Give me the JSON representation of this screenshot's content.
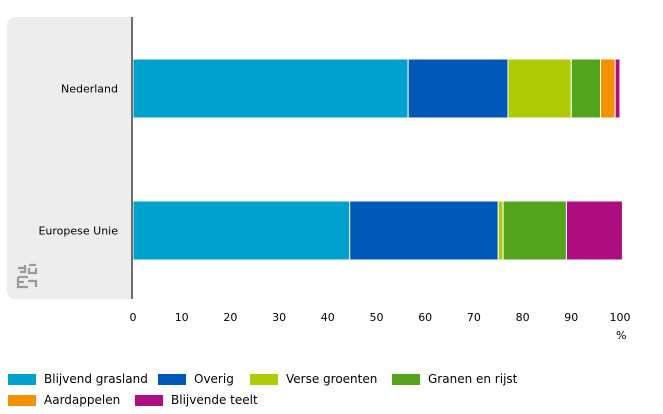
{
  "chart_data": {
    "type": "bar",
    "orientation": "horizontal",
    "stacked": true,
    "categories": [
      "Nederland",
      "Europese Unie"
    ],
    "series": [
      {
        "name": "Blijvend grasland",
        "color": "#00a1cd",
        "values": [
          56.5,
          44.5
        ]
      },
      {
        "name": "Overig",
        "color": "#0058b8",
        "values": [
          20.5,
          30.5
        ]
      },
      {
        "name": "Verse groenten",
        "color": "#afcb05",
        "values": [
          13.0,
          1.0
        ]
      },
      {
        "name": "Granen en rijst",
        "color": "#53a31d",
        "values": [
          6.0,
          13.0
        ]
      },
      {
        "name": "Aardappelen",
        "color": "#f39200",
        "values": [
          3.0,
          0.0
        ]
      },
      {
        "name": "Blijvende teelt",
        "color": "#af0e80",
        "values": [
          1.0,
          11.5
        ]
      }
    ],
    "xlim": [
      0,
      100
    ],
    "xticks": [
      0,
      10,
      20,
      30,
      40,
      50,
      60,
      70,
      80,
      90,
      100
    ],
    "xlabel": "%",
    "title": "",
    "legend_position": "bottom",
    "grid": false
  },
  "colors": {
    "category_panel": "#ededed",
    "axis": "#6d6d6d",
    "bar_separator": "#ffffff"
  },
  "icons": {
    "logo": "cbs-logo-icon"
  }
}
